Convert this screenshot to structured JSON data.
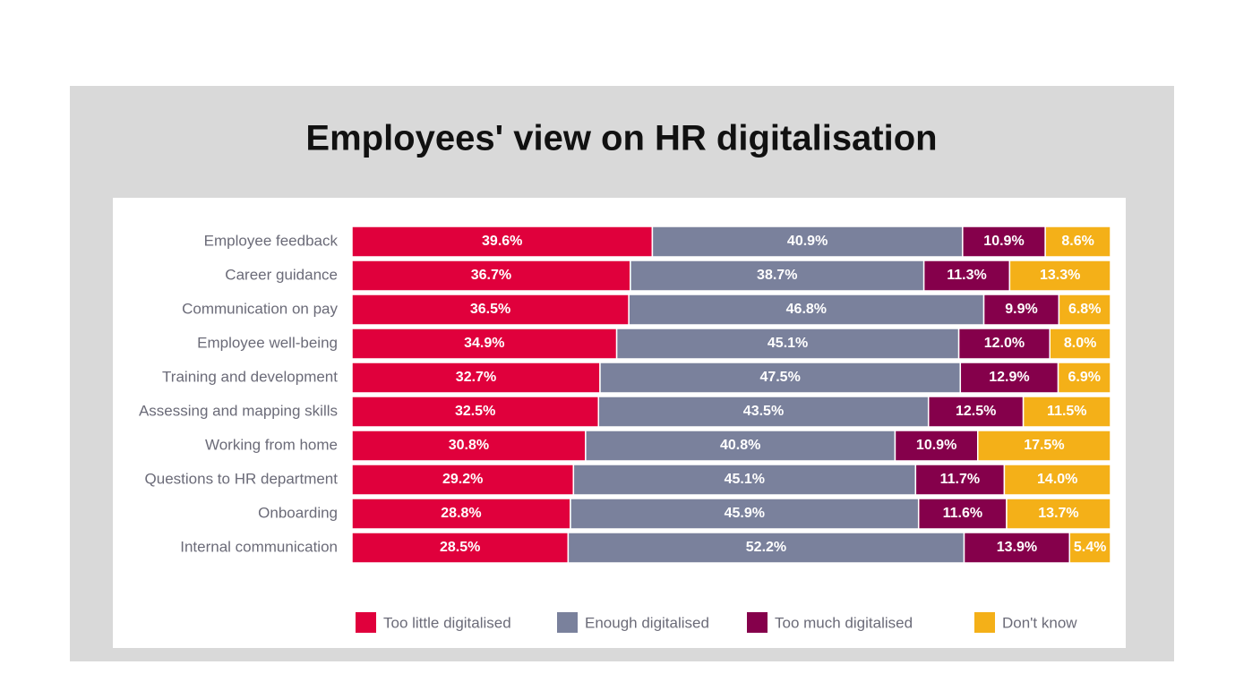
{
  "chart_data": {
    "type": "stacked-bar-100",
    "title": "Employees' view on HR digitalisation",
    "categories": [
      "Employee feedback",
      "Career guidance",
      "Communication on pay",
      "Employee well-being",
      "Training and development",
      "Assessing and mapping skills",
      "Working from home",
      "Questions to HR department",
      "Onboarding",
      "Internal communication"
    ],
    "series": [
      {
        "name": "Too little digitalised",
        "color": "#e0003c",
        "values": [
          39.6,
          36.7,
          36.5,
          34.9,
          32.7,
          32.5,
          30.8,
          29.2,
          28.8,
          28.5
        ],
        "value_labels": [
          "39.6%",
          "36.7%",
          "36.5%",
          "34.9%",
          "32.7%",
          "32.5%",
          "30.8%",
          "29.2%",
          "28.8%",
          "28.5%"
        ]
      },
      {
        "name": "Enough digitalised",
        "color": "#7a819c",
        "values": [
          40.9,
          38.7,
          46.8,
          45.1,
          47.5,
          43.5,
          40.8,
          45.1,
          45.9,
          52.2
        ],
        "value_labels": [
          "40.9%",
          "38.7%",
          "46.8%",
          "45.1%",
          "47.5%",
          "43.5%",
          "40.8%",
          "45.1%",
          "45.9%",
          "52.2%"
        ]
      },
      {
        "name": "Too much digitalised",
        "color": "#85004b",
        "values": [
          10.9,
          11.3,
          9.9,
          12.0,
          12.9,
          12.5,
          10.9,
          11.7,
          11.6,
          13.9
        ],
        "value_labels": [
          "10.9%",
          "11.3%",
          "9.9%",
          "12.0%",
          "12.9%",
          "12.5%",
          "10.9%",
          "11.7%",
          "11.6%",
          "13.9%"
        ]
      },
      {
        "name": "Don't know",
        "color": "#f4b018",
        "values": [
          8.6,
          13.3,
          6.8,
          8.0,
          6.9,
          11.5,
          17.5,
          14.0,
          13.7,
          5.4
        ],
        "value_labels": [
          "8.6%",
          "13.3%",
          "6.8%",
          "8.0%",
          "6.9%",
          "11.5%",
          "17.5%",
          "14.0%",
          "13.7%",
          "5.4%"
        ]
      }
    ]
  }
}
